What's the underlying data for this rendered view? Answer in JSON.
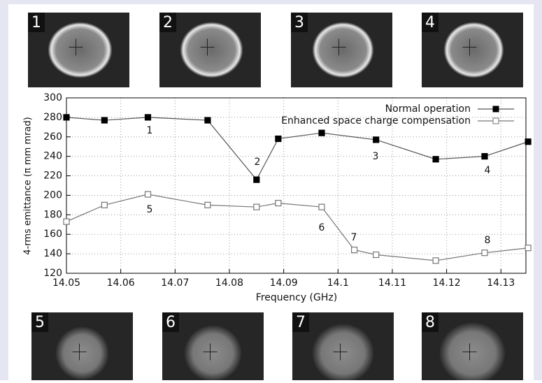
{
  "chart_data": {
    "type": "line",
    "x_label": "Frequency (GHz)",
    "y_label": "4-rms emittance (π mm mrad)",
    "xlim": [
      14.05,
      14.1346
    ],
    "ylim": [
      120,
      300
    ],
    "xticks": [
      14.05,
      14.06,
      14.07,
      14.08,
      14.09,
      14.1,
      14.11,
      14.12,
      14.13
    ],
    "yticks": [
      120,
      140,
      160,
      180,
      200,
      220,
      240,
      260,
      280,
      300
    ],
    "grid": true,
    "legend": "top-right",
    "series": [
      {
        "name": "Normal operation",
        "color": "#555555",
        "marker": "filled-square",
        "x": [
          14.05,
          14.057,
          14.065,
          14.076,
          14.085,
          14.089,
          14.097,
          14.107,
          14.118,
          14.127,
          14.135
        ],
        "values": [
          280,
          277,
          280,
          277,
          216,
          258,
          264,
          257,
          237,
          240,
          255
        ]
      },
      {
        "name": "Enhanced space charge compensation",
        "color": "#777777",
        "marker": "open-square",
        "x": [
          14.05,
          14.057,
          14.065,
          14.076,
          14.085,
          14.089,
          14.097,
          14.103,
          14.107,
          14.118,
          14.127,
          14.135
        ],
        "values": [
          173,
          190,
          201,
          190,
          188,
          192,
          188,
          144,
          139,
          133,
          141,
          146
        ]
      }
    ],
    "annotations": [
      "1",
      "2",
      "3",
      "4",
      "5",
      "6",
      "7",
      "8"
    ],
    "images": [
      "1",
      "2",
      "3",
      "4",
      "5",
      "6",
      "7",
      "8"
    ]
  }
}
